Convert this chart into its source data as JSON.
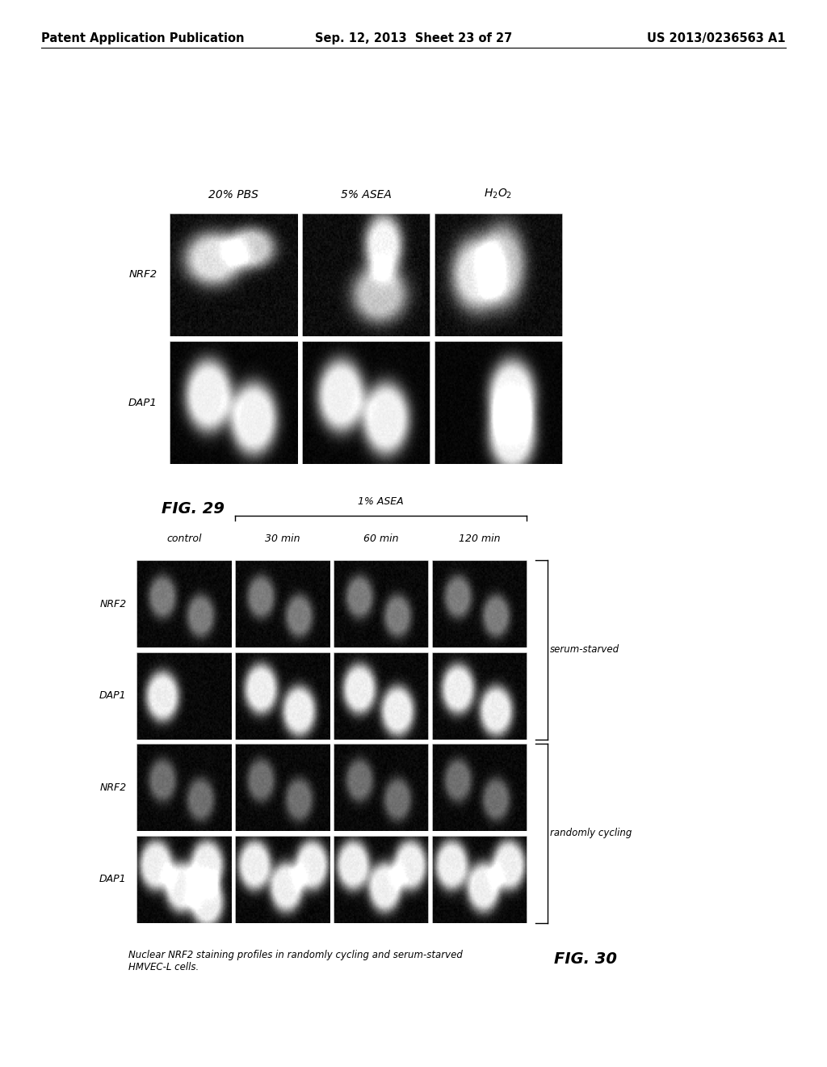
{
  "page_header": {
    "left": "Patent Application Publication",
    "center": "Sep. 12, 2013  Sheet 23 of 27",
    "right": "US 2013/0236563 A1"
  },
  "fig29": {
    "label": "FIG. 29",
    "col_labels": [
      "20% PBS",
      "5% ASEA",
      "H₂O₂"
    ],
    "row_labels": [
      "NRF2",
      "DAP1"
    ],
    "grid_rows": 2,
    "grid_cols": 3
  },
  "fig30": {
    "label": "FIG. 30",
    "asea_bracket_label": "1% ASEA",
    "col_labels": [
      "control",
      "30 min",
      "60 min",
      "120 min"
    ],
    "row_labels": [
      "NRF2",
      "DAP1",
      "NRF2",
      "DAP1"
    ],
    "bracket_labels": [
      "serum-starved",
      "randomly cycling"
    ],
    "grid_rows": 4,
    "grid_cols": 4,
    "caption": "Nuclear NRF2 staining profiles in randomly cycling and serum-starved\nHMVEC-L cells."
  },
  "bg_color": "#ffffff",
  "cell_bg": "#111111",
  "text_color": "#000000",
  "header_font_size": 11,
  "label_font_size": 10,
  "fig_label_font_size": 14
}
